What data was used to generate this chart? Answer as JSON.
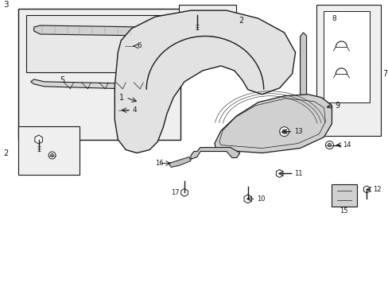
{
  "bg_color": "#ffffff",
  "line_color": "#1a1a1a",
  "box_fill": "#f0f0f0",
  "fig_width": 4.89,
  "fig_height": 3.6,
  "dpi": 100
}
